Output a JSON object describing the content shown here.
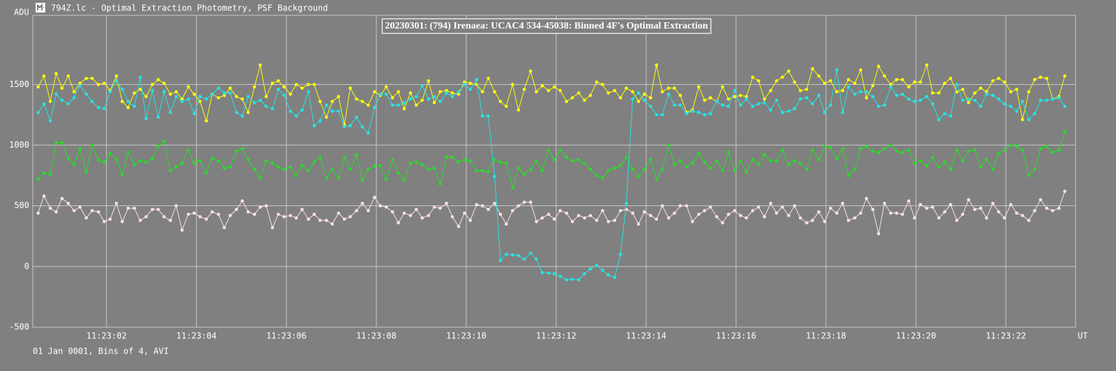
{
  "window_title": "794Z.lc - Optimal Extraction Photometry, PSF Background",
  "chart_data": {
    "type": "line",
    "title": "20230301: (794) Irenaea: UCAC4 534-45038: Binned 4F's Optimal Extraction",
    "y_label": "ADU",
    "x_label": "UT",
    "footnote": "01 Jan 0001, Bins of 4, AVI",
    "grid": true,
    "markers": true,
    "xlim": [
      0.36,
      23.55
    ],
    "xticks": [
      {
        "value": 2,
        "label": "11:23:02"
      },
      {
        "value": 4,
        "label": "11:23:04"
      },
      {
        "value": 6,
        "label": "11:23:06"
      },
      {
        "value": 8,
        "label": "11:23:08"
      },
      {
        "value": 10,
        "label": "11:23:10"
      },
      {
        "value": 12,
        "label": "11:23:12"
      },
      {
        "value": 14,
        "label": "11:23:14"
      },
      {
        "value": 16,
        "label": "11:23:16"
      },
      {
        "value": 18,
        "label": "11:23:18"
      },
      {
        "value": 20,
        "label": "11:23:20"
      },
      {
        "value": 22,
        "label": "11:23:22"
      }
    ],
    "ylim": [
      -500,
      2070
    ],
    "yticks": [
      -500,
      0,
      500,
      1000,
      1500
    ],
    "x": [
      0.48,
      0.61,
      0.75,
      0.88,
      1.01,
      1.15,
      1.28,
      1.41,
      1.55,
      1.68,
      1.82,
      1.95,
      2.08,
      2.22,
      2.35,
      2.48,
      2.62,
      2.75,
      2.88,
      3.02,
      3.15,
      3.28,
      3.42,
      3.55,
      3.68,
      3.82,
      3.95,
      4.08,
      4.22,
      4.35,
      4.49,
      4.62,
      4.75,
      4.89,
      5.02,
      5.15,
      5.29,
      5.42,
      5.55,
      5.69,
      5.82,
      5.95,
      6.09,
      6.22,
      6.35,
      6.49,
      6.62,
      6.75,
      6.89,
      7.02,
      7.16,
      7.29,
      7.42,
      7.56,
      7.69,
      7.82,
      7.96,
      8.09,
      8.22,
      8.36,
      8.49,
      8.62,
      8.76,
      8.89,
      9.02,
      9.16,
      9.29,
      9.42,
      9.56,
      9.69,
      9.83,
      9.96,
      10.09,
      10.23,
      10.36,
      10.49,
      10.63,
      10.76,
      10.89,
      11.03,
      11.16,
      11.29,
      11.43,
      11.56,
      11.69,
      11.83,
      11.96,
      12.09,
      12.23,
      12.36,
      12.5,
      12.63,
      12.76,
      12.9,
      13.03,
      13.16,
      13.3,
      13.43,
      13.56,
      13.7,
      13.83,
      13.96,
      14.1,
      14.23,
      14.36,
      14.5,
      14.63,
      14.76,
      14.9,
      15.03,
      15.17,
      15.3,
      15.43,
      15.57,
      15.7,
      15.83,
      15.97,
      16.1,
      16.23,
      16.37,
      16.5,
      16.63,
      16.77,
      16.9,
      17.03,
      17.17,
      17.3,
      17.43,
      17.57,
      17.7,
      17.84,
      17.97,
      18.1,
      18.24,
      18.37,
      18.5,
      18.64,
      18.77,
      18.9,
      19.04,
      19.17,
      19.3,
      19.44,
      19.57,
      19.7,
      19.84,
      19.97,
      20.1,
      20.24,
      20.37,
      20.51,
      20.64,
      20.77,
      20.91,
      21.04,
      21.17,
      21.31,
      21.44,
      21.57,
      21.71,
      21.84,
      21.97,
      22.11,
      22.24,
      22.37,
      22.51,
      22.64,
      22.77,
      22.91,
      23.04,
      23.18,
      23.31
    ],
    "series": [
      {
        "color": "#ffe0e0",
        "values": [
          440,
          580,
          480,
          450,
          560,
          520,
          460,
          490,
          400,
          460,
          450,
          370,
          390,
          520,
          370,
          480,
          480,
          380,
          410,
          470,
          470,
          410,
          380,
          500,
          300,
          430,
          440,
          410,
          390,
          450,
          430,
          320,
          420,
          470,
          540,
          450,
          430,
          490,
          500,
          320,
          430,
          410,
          420,
          400,
          470,
          390,
          430,
          380,
          380,
          350,
          440,
          390,
          410,
          460,
          520,
          460,
          570,
          500,
          490,
          450,
          360,
          440,
          420,
          470,
          400,
          420,
          490,
          480,
          520,
          410,
          330,
          440,
          380,
          510,
          500,
          470,
          520,
          430,
          350,
          460,
          500,
          530,
          530,
          370,
          400,
          430,
          390,
          460,
          440,
          370,
          420,
          400,
          420,
          380,
          460,
          370,
          380,
          460,
          470,
          440,
          350,
          450,
          420,
          390,
          500,
          400,
          440,
          500,
          500,
          370,
          430,
          460,
          490,
          410,
          360,
          430,
          460,
          420,
          400,
          460,
          490,
          410,
          520,
          440,
          490,
          420,
          500,
          400,
          360,
          380,
          450,
          370,
          480,
          440,
          520,
          380,
          400,
          440,
          560,
          470,
          270,
          520,
          440,
          440,
          430,
          540,
          400,
          510,
          480,
          490,
          400,
          450,
          510,
          380,
          430,
          550,
          470,
          480,
          400,
          520,
          450,
          400,
          510,
          440,
          420,
          380,
          460,
          550,
          480,
          460,
          480,
          620
        ]
      },
      {
        "color": "#22e022",
        "values": [
          720,
          770,
          760,
          1020,
          1020,
          890,
          840,
          970,
          780,
          1000,
          880,
          860,
          930,
          880,
          760,
          940,
          840,
          870,
          860,
          890,
          990,
          1030,
          790,
          820,
          850,
          960,
          850,
          870,
          770,
          890,
          870,
          810,
          820,
          950,
          970,
          880,
          800,
          730,
          870,
          850,
          820,
          800,
          820,
          750,
          830,
          790,
          860,
          900,
          730,
          800,
          730,
          900,
          800,
          920,
          710,
          800,
          830,
          830,
          720,
          880,
          770,
          710,
          850,
          860,
          840,
          800,
          810,
          680,
          900,
          900,
          860,
          880,
          870,
          790,
          790,
          780,
          880,
          860,
          850,
          650,
          810,
          760,
          800,
          870,
          790,
          960,
          880,
          960,
          900,
          870,
          880,
          850,
          800,
          750,
          730,
          790,
          810,
          830,
          900,
          800,
          740,
          800,
          880,
          720,
          800,
          1000,
          840,
          870,
          820,
          850,
          930,
          860,
          810,
          870,
          790,
          940,
          790,
          870,
          780,
          880,
          840,
          920,
          870,
          870,
          960,
          840,
          870,
          850,
          800,
          960,
          880,
          990,
          980,
          890,
          970,
          750,
          800,
          970,
          990,
          950,
          940,
          970,
          1000,
          950,
          940,
          960,
          850,
          870,
          830,
          900,
          820,
          860,
          800,
          960,
          870,
          950,
          960,
          820,
          880,
          800,
          930,
          960,
          1000,
          990,
          960,
          750,
          800,
          970,
          990,
          940,
          960,
          1110
        ]
      },
      {
        "color": "#ffff00",
        "values": [
          1480,
          1570,
          1360,
          1590,
          1470,
          1570,
          1440,
          1510,
          1550,
          1550,
          1500,
          1510,
          1450,
          1570,
          1360,
          1310,
          1430,
          1460,
          1400,
          1500,
          1540,
          1510,
          1420,
          1440,
          1380,
          1480,
          1420,
          1360,
          1200,
          1420,
          1390,
          1410,
          1470,
          1400,
          1380,
          1270,
          1480,
          1660,
          1400,
          1510,
          1530,
          1480,
          1420,
          1500,
          1470,
          1500,
          1500,
          1360,
          1230,
          1360,
          1400,
          1170,
          1470,
          1380,
          1360,
          1330,
          1440,
          1410,
          1480,
          1390,
          1440,
          1300,
          1430,
          1330,
          1370,
          1530,
          1350,
          1440,
          1450,
          1430,
          1420,
          1520,
          1510,
          1500,
          1440,
          1550,
          1440,
          1360,
          1320,
          1500,
          1290,
          1460,
          1610,
          1440,
          1490,
          1450,
          1480,
          1450,
          1360,
          1390,
          1430,
          1370,
          1410,
          1520,
          1500,
          1430,
          1450,
          1390,
          1470,
          1440,
          1360,
          1420,
          1390,
          1660,
          1440,
          1470,
          1470,
          1410,
          1270,
          1290,
          1480,
          1370,
          1390,
          1360,
          1480,
          1380,
          1400,
          1410,
          1400,
          1560,
          1530,
          1380,
          1450,
          1530,
          1560,
          1610,
          1520,
          1450,
          1460,
          1630,
          1570,
          1510,
          1530,
          1440,
          1450,
          1540,
          1510,
          1620,
          1390,
          1490,
          1650,
          1570,
          1500,
          1540,
          1540,
          1480,
          1520,
          1520,
          1660,
          1430,
          1430,
          1510,
          1550,
          1440,
          1460,
          1350,
          1430,
          1470,
          1440,
          1530,
          1550,
          1520,
          1440,
          1460,
          1210,
          1440,
          1540,
          1560,
          1550,
          1380,
          1400,
          1570
        ]
      },
      {
        "color": "#22e5e5",
        "values": [
          1270,
          1340,
          1200,
          1420,
          1370,
          1340,
          1390,
          1490,
          1420,
          1360,
          1310,
          1300,
          1440,
          1530,
          1460,
          1360,
          1320,
          1560,
          1220,
          1450,
          1230,
          1440,
          1270,
          1400,
          1360,
          1380,
          1260,
          1400,
          1380,
          1420,
          1470,
          1430,
          1430,
          1270,
          1240,
          1400,
          1350,
          1370,
          1320,
          1300,
          1460,
          1410,
          1280,
          1240,
          1290,
          1440,
          1160,
          1200,
          1330,
          1280,
          1280,
          1150,
          1160,
          1230,
          1150,
          1100,
          1310,
          1420,
          1420,
          1330,
          1330,
          1350,
          1380,
          1400,
          1490,
          1380,
          1400,
          1360,
          1430,
          1400,
          1440,
          1500,
          1460,
          1540,
          1240,
          1240,
          740,
          50,
          100,
          95,
          90,
          60,
          110,
          60,
          -50,
          -55,
          -60,
          -80,
          -110,
          -105,
          -110,
          -60,
          -20,
          10,
          -30,
          -70,
          -90,
          100,
          520,
          1380,
          1430,
          1370,
          1320,
          1250,
          1250,
          1420,
          1330,
          1330,
          1260,
          1280,
          1270,
          1250,
          1260,
          1360,
          1330,
          1320,
          1450,
          1330,
          1380,
          1320,
          1340,
          1350,
          1290,
          1370,
          1270,
          1280,
          1300,
          1380,
          1390,
          1340,
          1410,
          1270,
          1330,
          1620,
          1270,
          1480,
          1420,
          1440,
          1440,
          1400,
          1320,
          1330,
          1480,
          1410,
          1420,
          1380,
          1360,
          1370,
          1400,
          1340,
          1210,
          1260,
          1240,
          1500,
          1370,
          1380,
          1370,
          1320,
          1420,
          1410,
          1380,
          1340,
          1320,
          1280,
          1360,
          1210,
          1260,
          1370,
          1370,
          1380,
          1390,
          1320
        ]
      }
    ]
  }
}
